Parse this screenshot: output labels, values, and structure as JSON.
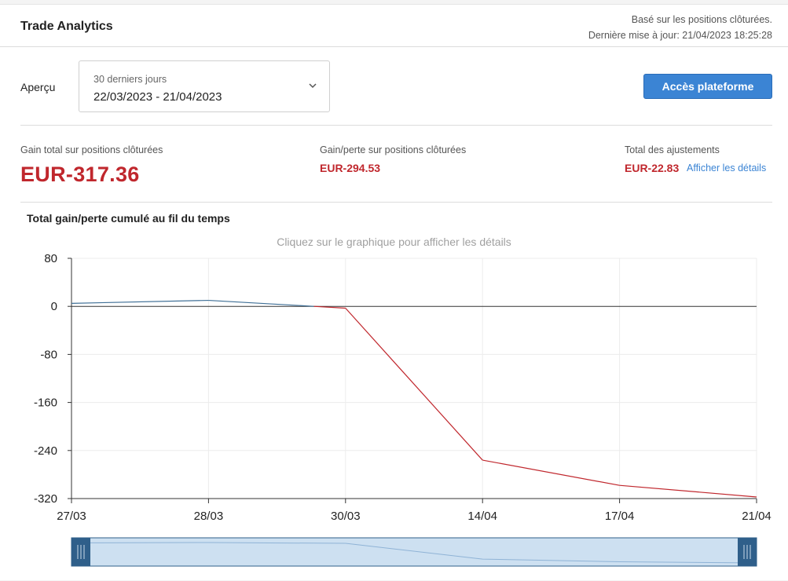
{
  "header": {
    "title": "Trade Analytics",
    "basis": "Basé sur les positions clôturées.",
    "updated": "Dernière mise à jour: 21/04/2023 18:25:28"
  },
  "overview": {
    "label": "Aperçu",
    "period_name": "30 derniers jours",
    "period_range": "22/03/2023 - 21/04/2023",
    "platform_button": "Accès plateforme"
  },
  "stats": {
    "total_label": "Gain total sur positions clôturées",
    "total_value": "EUR-317.36",
    "pl_label": "Gain/perte sur positions clôturées",
    "pl_value": "EUR-294.53",
    "adj_label": "Total des ajustements",
    "adj_value": "EUR-22.83",
    "adj_link": "Afficher les détails"
  },
  "chart": {
    "title": "Total gain/perte cumulé au fil du temps",
    "hint": "Cliquez sur le graphique pour afficher les détails"
  },
  "colors": {
    "negative": "#c0272d",
    "positive_line": "#3f6f96",
    "accent": "#3b84d4",
    "navigator_fill": "#cde0f1",
    "navigator_handle": "#2f5f8a"
  },
  "chart_data": {
    "type": "line",
    "title": "Total gain/perte cumulé au fil du temps",
    "xlabel": "",
    "ylabel": "",
    "categories": [
      "27/03",
      "28/03",
      "30/03",
      "14/04",
      "17/04",
      "21/04"
    ],
    "series": [
      {
        "values": [
          5,
          10,
          -3,
          -256,
          -298,
          -317.36
        ]
      }
    ],
    "yticks": [
      80,
      0,
      -80,
      -160,
      -240,
      -320
    ],
    "ylim": [
      -320,
      80
    ],
    "grid": true,
    "legend": "none",
    "navigator": true
  }
}
